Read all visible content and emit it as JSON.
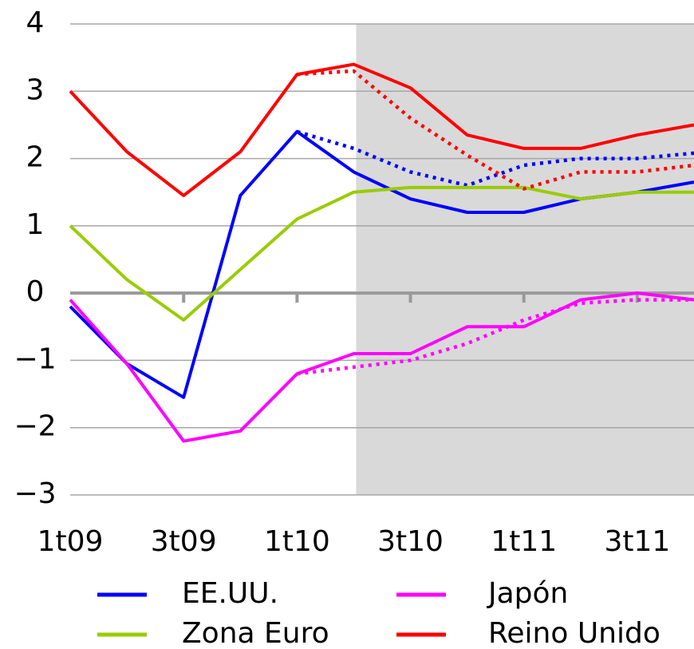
{
  "chart_data": {
    "type": "line",
    "categories": [
      "1t09",
      null,
      "3t09",
      null,
      "1t10",
      null,
      "3t10",
      null,
      "1t11",
      null,
      "3t11",
      null
    ],
    "series": [
      {
        "name": "EE.UU.",
        "color": "#0000ff",
        "values": [
          -0.2,
          -1.05,
          -1.55,
          1.45,
          2.4,
          1.8,
          1.4,
          1.2,
          1.2,
          1.4,
          1.5,
          1.65
        ]
      },
      {
        "color": "#0000ff",
        "style": "dotted",
        "values": [
          null,
          null,
          null,
          null,
          2.4,
          2.15,
          1.8,
          1.6,
          1.9,
          2.0,
          2.0,
          2.08
        ]
      },
      {
        "name": "Japón",
        "color": "#ff00ff",
        "values": [
          -0.1,
          -1.05,
          -2.2,
          -2.05,
          -1.2,
          -0.9,
          -0.9,
          -0.5,
          -0.5,
          -0.1,
          0.0,
          -0.1
        ]
      },
      {
        "color": "#ff00ff",
        "style": "dotted",
        "values": [
          null,
          null,
          null,
          null,
          -1.2,
          -1.1,
          -1.0,
          -0.75,
          -0.4,
          -0.15,
          -0.1,
          -0.1
        ]
      },
      {
        "name": "Zona Euro",
        "color": "#99cc00",
        "values": [
          1.0,
          0.2,
          -0.4,
          0.35,
          1.1,
          1.5,
          1.57,
          1.57,
          1.57,
          1.4,
          1.5,
          1.5
        ]
      },
      {
        "name": "Reino Unido",
        "color": "#ff0000",
        "values": [
          3.0,
          2.1,
          1.45,
          2.1,
          3.25,
          3.4,
          3.05,
          2.35,
          2.15,
          2.15,
          2.35,
          2.5
        ]
      },
      {
        "color": "#ff0000",
        "style": "dotted",
        "values": [
          null,
          null,
          null,
          null,
          3.25,
          3.3,
          2.6,
          2.05,
          1.55,
          1.8,
          1.8,
          1.9
        ]
      }
    ],
    "ylim": [
      -3,
      4
    ],
    "yticks": [
      {
        "value": -3,
        "label": "−3"
      },
      {
        "value": -2,
        "label": "−2"
      },
      {
        "value": -1,
        "label": "−1"
      },
      0,
      1,
      2,
      3,
      4
    ],
    "grid": true
  }
}
